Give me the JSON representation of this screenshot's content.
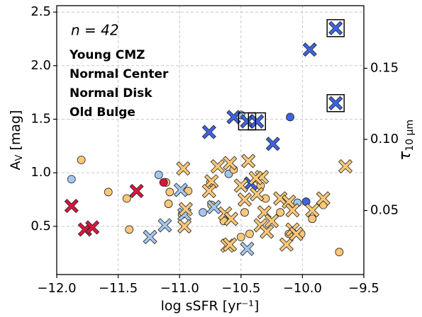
{
  "chart_data": {
    "type": "scatter",
    "annotation": "n = 42",
    "xlabel": "log sSFR [yr⁻¹]",
    "ylabel": {
      "main": "A",
      "sub": "V",
      "unit": " [mag]"
    },
    "y2label": {
      "main": "τ",
      "sub": "10 μm"
    },
    "xlim": [
      -12,
      -9.5
    ],
    "ylim": [
      0.05,
      2.56
    ],
    "y2lim": [
      0.005,
      0.194
    ],
    "xticks": [
      {
        "value": -12,
        "label": "−12.0"
      },
      {
        "value": -11.5,
        "label": "−11.5"
      },
      {
        "value": -11,
        "label": "−11.0"
      },
      {
        "value": -10.5,
        "label": "−10.5"
      },
      {
        "value": -10,
        "label": "−10.0"
      },
      {
        "value": -9.5,
        "label": "−9.5"
      }
    ],
    "yticks": [
      0.5,
      {
        "value": 1,
        "label": "1.0"
      },
      1.5,
      {
        "value": 2,
        "label": "2.0"
      },
      2.5
    ],
    "y2ticks": [
      0.05,
      {
        "value": 0.1,
        "label": "0.10"
      },
      0.15
    ],
    "grid": true,
    "legend": "upper left",
    "series": [
      {
        "name": "Young CMZ",
        "color": "#3e63e3",
        "x": [
          -9.73,
          -9.94,
          -9.73,
          -10.76,
          -10.56,
          -10.45,
          -10.37,
          -10.24,
          -10.42,
          -10.1,
          -9.97
        ],
        "values": [
          2.35,
          2.15,
          1.65,
          1.38,
          1.52,
          1.48,
          1.48,
          1.27,
          0.9,
          1.52,
          0.73
        ],
        "markers": [
          "x",
          "x",
          "x",
          "x",
          "x",
          "x",
          "x",
          "x",
          "x",
          "o",
          "o"
        ],
        "boxed": [
          0,
          2,
          5,
          6
        ]
      },
      {
        "name": "Normal Center",
        "color": "#a3c7ec",
        "x": [
          -11.24,
          -11.12,
          -10.96,
          -10.72,
          -10.45,
          -10.99,
          -11.88,
          -11.17,
          -10.81,
          -10.6,
          -10.5,
          -10.04
        ],
        "values": [
          0.4,
          0.51,
          0.61,
          0.68,
          0.29,
          0.84,
          0.94,
          0.98,
          0.63,
          0.99,
          1.54,
          0.72
        ],
        "markers": [
          "x",
          "x",
          "x",
          "x",
          "x",
          "x",
          "o",
          "o",
          "o",
          "o",
          "o",
          "o"
        ]
      },
      {
        "name": "Normal Disk",
        "color": "#fcc879",
        "x": [
          -10.97,
          -10.95,
          -10.96,
          -10.74,
          -10.63,
          -10.61,
          -10.59,
          -10.5,
          -10.47,
          -10.59,
          -10.44,
          -10.37,
          -10.33,
          -10.31,
          -10.34,
          -10.29,
          -10.25,
          -10.18,
          -10.11,
          -10.13,
          -10.08,
          -10.05,
          -10.08,
          -9.92,
          -9.83,
          -9.65,
          -10.69,
          -10.76,
          -10.38,
          -10.58,
          -11.8,
          -11.58,
          -11.43,
          -11.41,
          -11.11,
          -11.08,
          -11.09,
          -10.98,
          -10.93,
          -10.75,
          -10.64,
          -10.56,
          -10.47,
          -10.43,
          -10.5,
          -10.34,
          -10.3,
          -10.18,
          -10.11,
          -10.01,
          -9.92,
          -9.83,
          -9.7,
          -10.74
        ],
        "values": [
          1.04,
          0.66,
          0.5,
          0.92,
          0.62,
          0.32,
          1.09,
          0.88,
          0.75,
          0.33,
          1.11,
          0.8,
          0.96,
          0.63,
          0.51,
          0.45,
          0.55,
          0.76,
          0.73,
          0.33,
          0.47,
          0.43,
          0.65,
          0.65,
          0.76,
          1.06,
          1.06,
          0.83,
          0.95,
          0.57,
          1.12,
          0.82,
          0.76,
          0.47,
          0.91,
          0.82,
          0.71,
          0.61,
          0.83,
          0.91,
          0.55,
          1.03,
          0.63,
          0.43,
          0.4,
          0.88,
          0.76,
          0.63,
          0.43,
          0.43,
          0.57,
          0.7,
          0.26,
          0.7
        ],
        "markers": [
          "x",
          "x",
          "x",
          "x",
          "x",
          "x",
          "x",
          "x",
          "x",
          "x",
          "x",
          "x",
          "x",
          "x",
          "x",
          "x",
          "x",
          "x",
          "x",
          "x",
          "x",
          "x",
          "x",
          "x",
          "x",
          "x",
          "x",
          "x",
          "x",
          "x",
          "o",
          "o",
          "o",
          "o",
          "o",
          "o",
          "o",
          "o",
          "o",
          "o",
          "o",
          "o",
          "o",
          "o",
          "o",
          "o",
          "o",
          "o",
          "o",
          "o",
          "o",
          "o",
          "o",
          "o"
        ]
      },
      {
        "name": "Old Bulge",
        "color": "#d8173d",
        "x": [
          -11.88,
          -11.77,
          -11.71,
          -11.35,
          -11.13
        ],
        "values": [
          0.69,
          0.47,
          0.49,
          0.83,
          0.91
        ],
        "markers": [
          "x",
          "x",
          "x",
          "x",
          "o"
        ]
      }
    ]
  }
}
